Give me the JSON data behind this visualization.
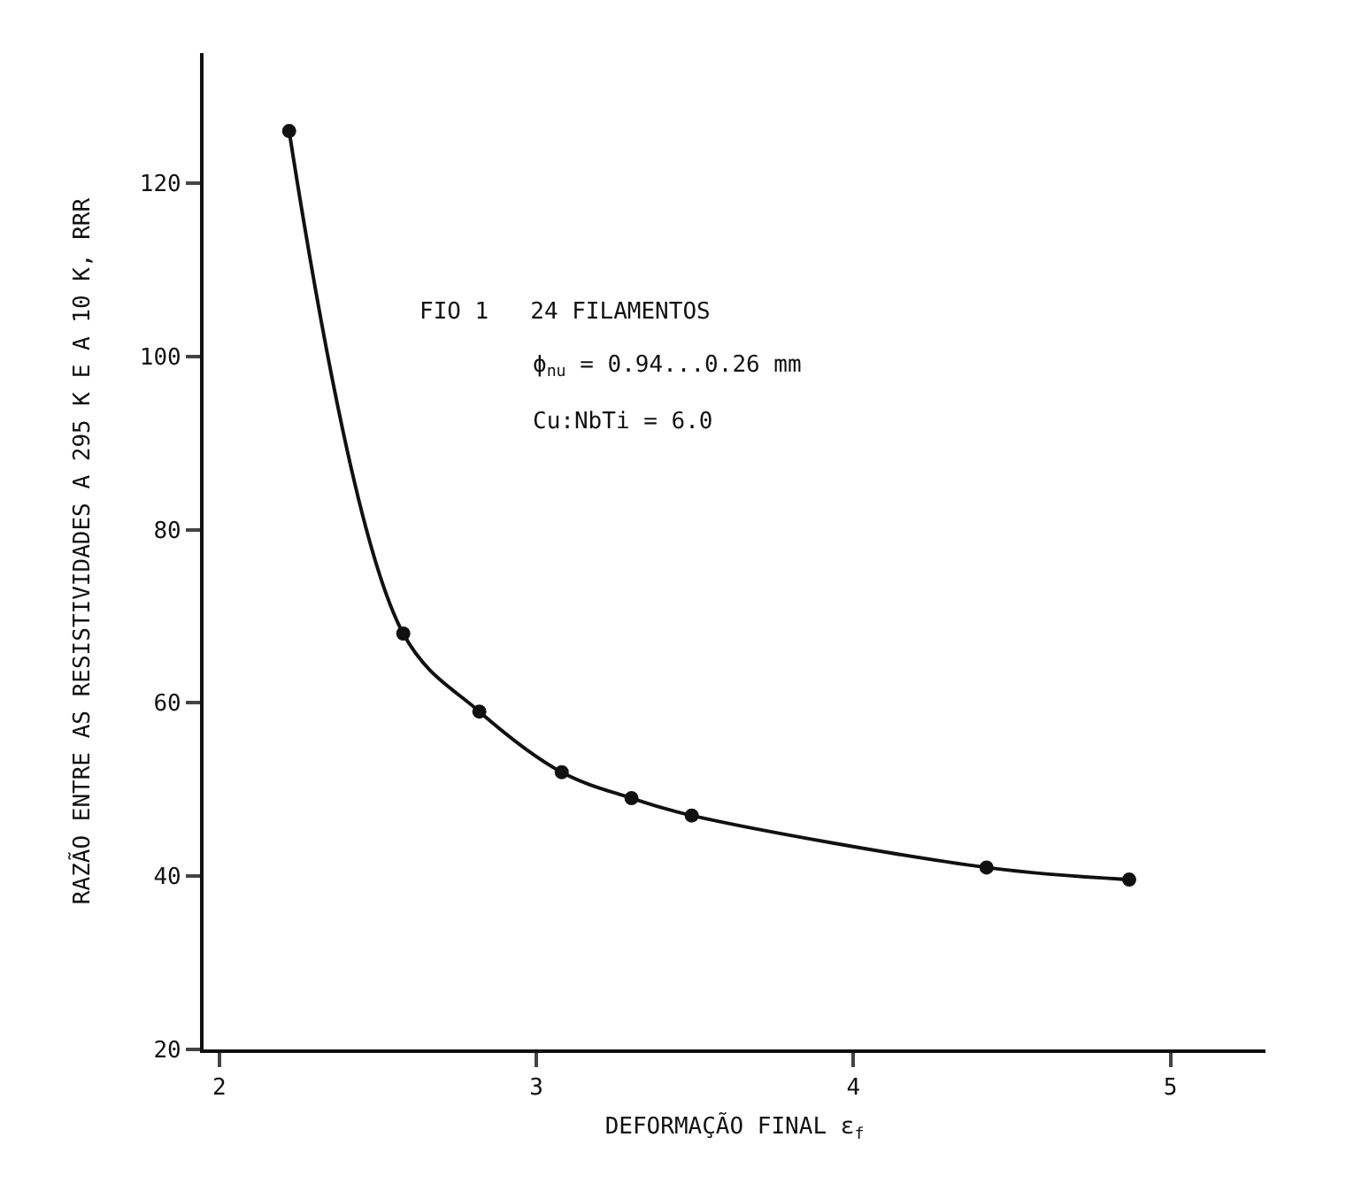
{
  "chart_data": {
    "type": "line",
    "xlabel": "DEFORMAÇÃO FINAL ε$_{f}$",
    "ylabel": "RAZÃO ENTRE AS RESISTIVIDADES A 295 K E A 10 K, RRR",
    "x": [
      2.22,
      2.58,
      2.82,
      3.08,
      3.3,
      3.49,
      4.42,
      4.87
    ],
    "series": [
      {
        "color": "#111111",
        "values": [
          126,
          68,
          59,
          52,
          49,
          47,
          41,
          39.6
        ]
      }
    ],
    "xlim": [
      1.95,
      5.3
    ],
    "ylim": [
      20,
      135
    ],
    "xticks": [
      2,
      3,
      4,
      5
    ],
    "yticks": [
      20,
      40,
      60,
      80,
      100,
      120
    ],
    "annotations": [
      "FIO 1   24 FILAMENTOS",
      "ϕ$_{nu}$ = 0.94...0.26 mm",
      "Cu:NbTi = 6.0"
    ],
    "marker": "circle",
    "line_style": "solid"
  }
}
